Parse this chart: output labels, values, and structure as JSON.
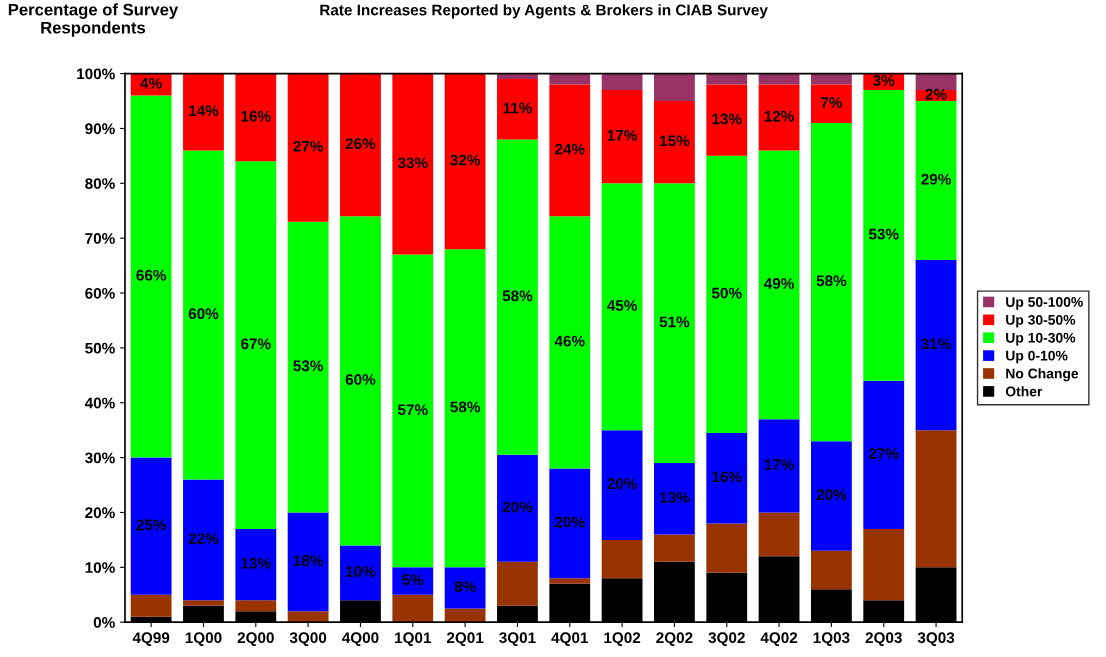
{
  "chart_data": {
    "type": "bar",
    "stacked": true,
    "title": "Rate Increases Reported by Agents & Brokers in CIAB Survey",
    "ylabel": "Percentage of Survey\nRespondents",
    "categories": [
      "4Q99",
      "1Q00",
      "2Q00",
      "3Q00",
      "4Q00",
      "1Q01",
      "2Q01",
      "3Q01",
      "4Q01",
      "1Q02",
      "2Q02",
      "3Q02",
      "4Q02",
      "1Q03",
      "2Q03",
      "3Q03"
    ],
    "series": [
      {
        "name": "Other",
        "color": "#000000",
        "values": [
          1,
          3,
          2,
          0,
          4,
          0,
          0,
          3,
          7,
          8,
          11,
          9,
          12,
          6,
          4,
          10
        ]
      },
      {
        "name": "No Change",
        "color": "#993300",
        "values": [
          4,
          1,
          2,
          2,
          0,
          5,
          2.5,
          8,
          1,
          7,
          5,
          9,
          8,
          7,
          13,
          25
        ]
      },
      {
        "name": "Up 0-10%",
        "color": "#0000ff",
        "values": [
          25,
          22,
          13,
          18,
          10,
          5,
          7.5,
          19.5,
          20,
          20,
          13,
          16.5,
          17,
          20,
          27,
          31
        ],
        "value_labels": [
          "25%",
          "22%",
          "13%",
          "18%",
          "10%",
          "5%",
          "8%",
          "20%",
          "20%",
          "20%",
          "13%",
          "16%",
          "17%",
          "20%",
          "27%",
          "31%"
        ]
      },
      {
        "name": "Up 10-30%",
        "color": "#00ff00",
        "values": [
          66,
          60,
          67,
          53,
          60,
          57,
          58,
          57.5,
          46,
          45,
          51,
          50.5,
          49,
          58,
          53,
          29
        ],
        "value_labels": [
          "66%",
          "60%",
          "67%",
          "53%",
          "60%",
          "57%",
          "58%",
          "58%",
          "46%",
          "45%",
          "51%",
          "50%",
          "49%",
          "58%",
          "53%",
          "29%"
        ]
      },
      {
        "name": "Up 30-50%",
        "color": "#ff0000",
        "values": [
          4,
          14,
          16,
          27,
          26,
          33,
          32,
          11,
          24,
          17,
          15,
          13,
          12,
          7,
          3,
          2
        ],
        "value_labels": [
          "4%",
          "14%",
          "16%",
          "27%",
          "26%",
          "33%",
          "32%",
          "11%",
          "24%",
          "17%",
          "15%",
          "13%",
          "12%",
          "7%",
          "3%",
          "2%"
        ]
      },
      {
        "name": "Up 50-100%",
        "color": "#993366",
        "values": [
          0,
          0,
          0,
          0,
          0,
          0,
          0,
          1,
          2,
          3,
          5,
          2,
          2,
          2,
          0,
          3
        ]
      }
    ],
    "ylim": [
      0,
      100
    ],
    "yticks": [
      {
        "value": 0,
        "label": "0%"
      },
      {
        "value": 10,
        "label": "10%"
      },
      {
        "value": 20,
        "label": "20%"
      },
      {
        "value": 30,
        "label": "30%"
      },
      {
        "value": 40,
        "label": "40%"
      },
      {
        "value": 50,
        "label": "50%"
      },
      {
        "value": 60,
        "label": "60%"
      },
      {
        "value": 70,
        "label": "70%"
      },
      {
        "value": 80,
        "label": "80%"
      },
      {
        "value": 90,
        "label": "90%"
      },
      {
        "value": 100,
        "label": "100%"
      }
    ],
    "grid": false,
    "legend": "right"
  }
}
